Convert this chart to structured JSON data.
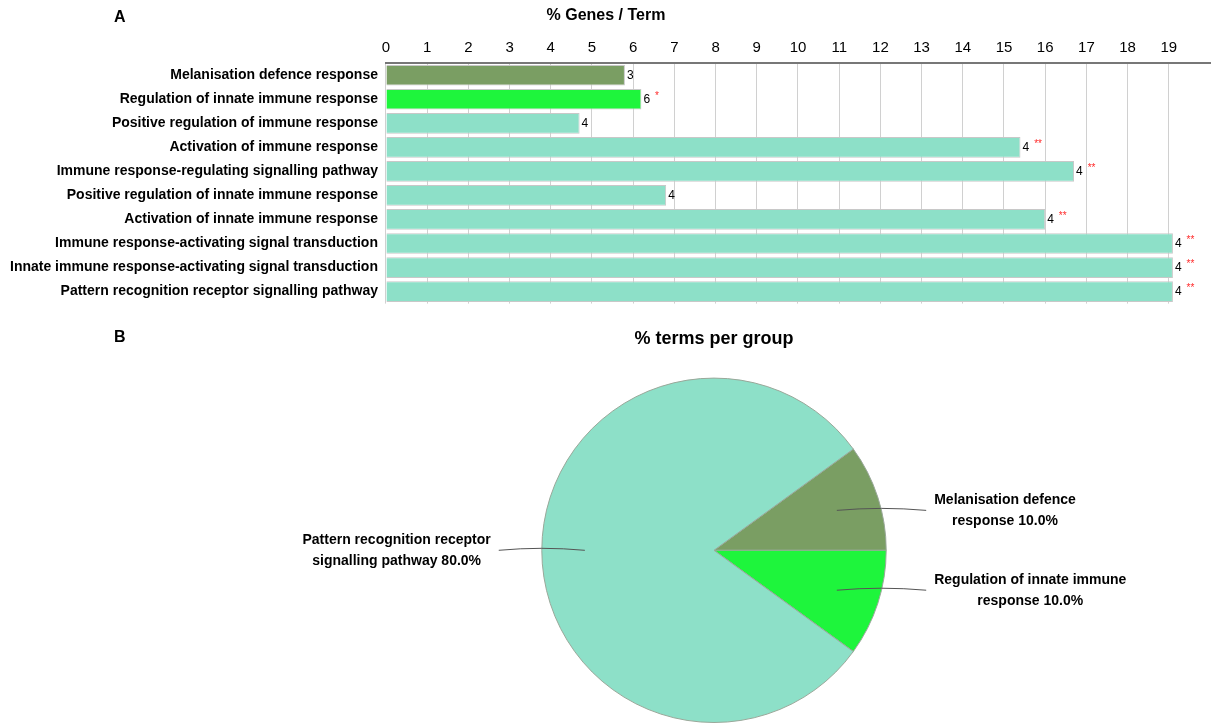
{
  "chart_data": [
    {
      "type": "bar",
      "orientation": "horizontal",
      "title": "% Genes / Term",
      "annotations": [
        "A",
        {
          "text": "3",
          "x": 5.8,
          "y": "Melanisation defence response"
        },
        {
          "text": "6 *",
          "x": 6.2,
          "y": "Regulation of innate immune response"
        },
        {
          "text": "4",
          "x": 4.7,
          "y": "Positive regulation of immune response"
        },
        {
          "text": "4 **",
          "x": 15.4,
          "y": "Activation of immune response"
        },
        {
          "text": "4 **",
          "x": 16.7,
          "y": "Immune response-regulating signalling pathway"
        },
        {
          "text": "4",
          "x": 6.8,
          "y": "Positive regulation of innate immune response"
        },
        {
          "text": "4 **",
          "x": 16.0,
          "y": "Activation of innate immune response"
        },
        {
          "text": "4 **",
          "x": 19.1,
          "y": "Immune response-activating signal transduction"
        },
        {
          "text": "4 **",
          "x": 19.1,
          "y": "Innate immune response-activating signal transduction"
        },
        {
          "text": "4 **",
          "x": 19.1,
          "y": "Pattern recognition receptor signalling pathway"
        }
      ],
      "categories": [
        "Melanisation defence response",
        "Regulation of innate immune response",
        "Positive regulation of immune response",
        "Activation of immune response",
        "Immune response-regulating signalling pathway",
        "Positive regulation of innate immune response",
        "Activation of innate immune response",
        "Immune response-activating signal transduction",
        "Innate immune response-activating signal transduction",
        "Pattern recognition receptor signalling pathway"
      ],
      "values": [
        5.8,
        6.2,
        4.7,
        15.4,
        16.7,
        6.8,
        16.0,
        19.1,
        19.1,
        19.1
      ],
      "colors": [
        "#7a9e63",
        "#1ef53c",
        "#8de0c8",
        "#8de0c8",
        "#8de0c8",
        "#8de0c8",
        "#8de0c8",
        "#8de0c8",
        "#8de0c8",
        "#8de0c8"
      ],
      "xlim": [
        0,
        20
      ],
      "xticks": [
        0,
        1,
        2,
        3,
        4,
        5,
        6,
        7,
        8,
        9,
        10,
        11,
        12,
        13,
        14,
        15,
        16,
        17,
        18,
        19
      ],
      "grid": "x"
    },
    {
      "type": "pie",
      "title": "% terms per group",
      "annotations": [
        "B"
      ],
      "categories": [
        "Melanisation defence response",
        "Regulation of innate immune response",
        "Pattern recognition receptor signalling pathway"
      ],
      "values": [
        10,
        10,
        80
      ],
      "colors": [
        "#7a9e63",
        "#1ef53c",
        "#8de0c8"
      ],
      "value_labels": [
        "10.0%",
        "10.0%",
        "80.0%"
      ]
    }
  ]
}
